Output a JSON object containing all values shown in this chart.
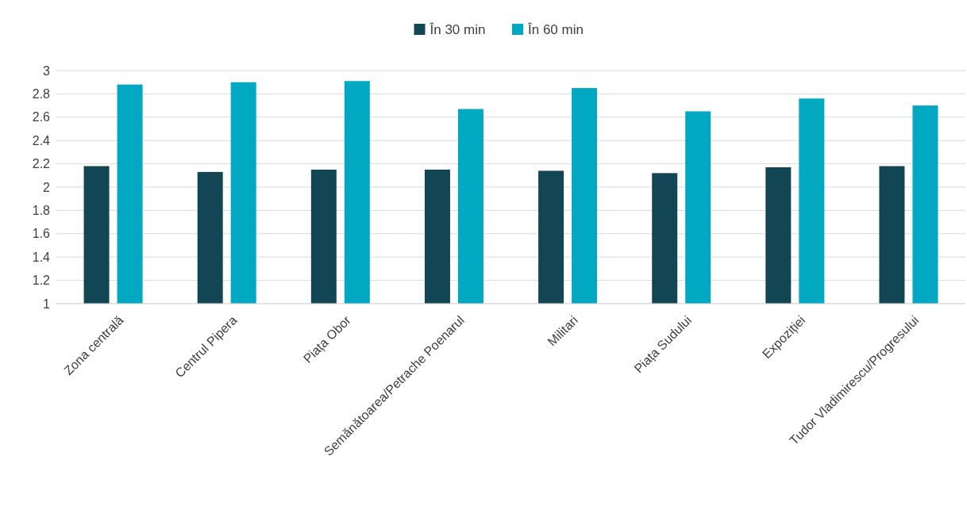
{
  "chart_data": {
    "type": "bar",
    "categories": [
      "Zona centrală",
      "Centrul Pipera",
      "Piața Obor",
      "Semănătoarea/Petrache Poenarul",
      "Militari",
      "Piața Sudului",
      "Expoziției",
      "Tudor Vladimirescu/Progresului"
    ],
    "series": [
      {
        "name": "În 30 min",
        "color": "#134654",
        "values": [
          2.18,
          2.13,
          2.15,
          2.15,
          2.14,
          2.12,
          2.17,
          2.18
        ]
      },
      {
        "name": "În 60 min",
        "color": "#00a9c1",
        "values": [
          2.88,
          2.9,
          2.91,
          2.67,
          2.85,
          2.65,
          2.76,
          2.7
        ]
      }
    ],
    "ylim": [
      1,
      3
    ],
    "yticks": [
      1,
      1.2,
      1.4,
      1.6,
      1.8,
      2,
      2.2,
      2.4,
      2.6,
      2.8,
      3
    ],
    "grid": "y",
    "legend": "top"
  }
}
